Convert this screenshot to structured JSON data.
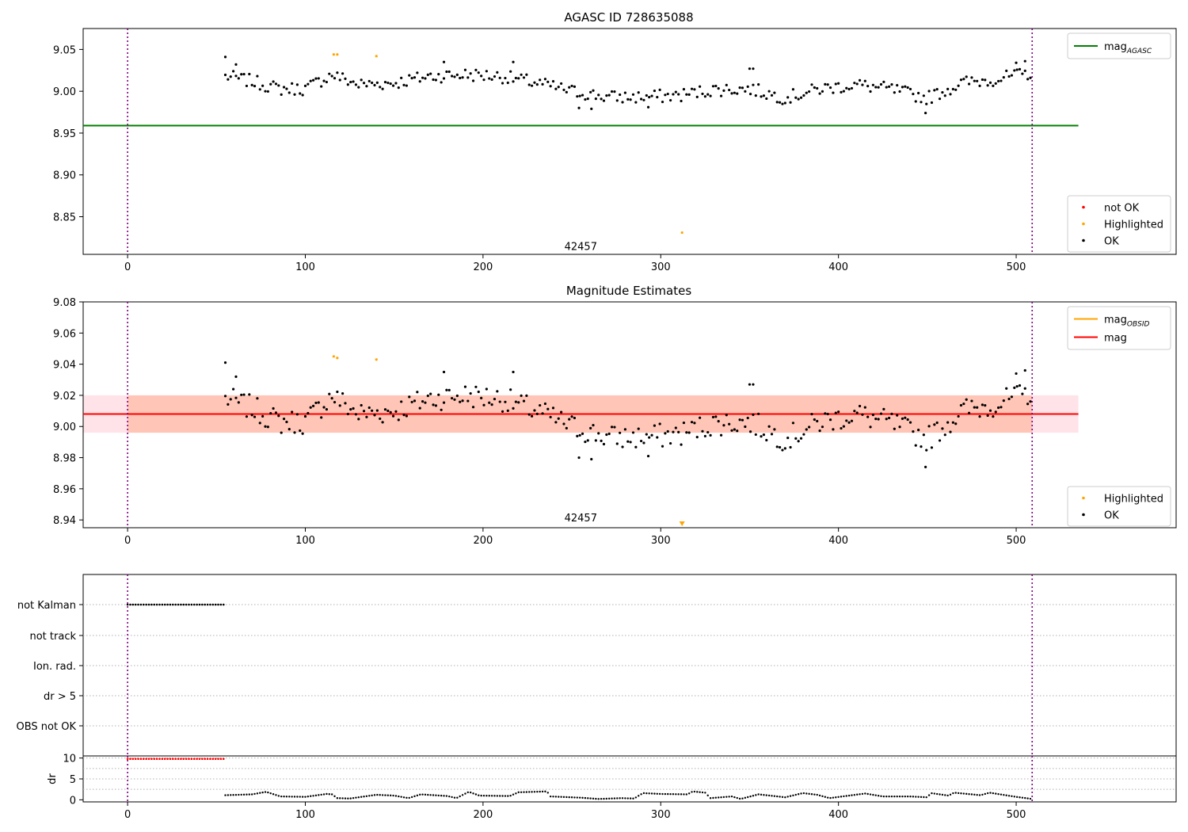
{
  "chart_data": [
    {
      "type": "scatter",
      "title": "AGASC ID 728635088",
      "xlim": [
        -25,
        590
      ],
      "ylim": [
        8.805,
        9.075
      ],
      "xticks": [
        0,
        100,
        200,
        300,
        400,
        500
      ],
      "yticks": [
        8.85,
        8.9,
        8.95,
        9.0,
        9.05
      ],
      "vlines": [
        0,
        509
      ],
      "annotation": {
        "text": "42457",
        "x": 255,
        "y": 8.81
      },
      "hlines": [
        {
          "name": "mag_AGASC",
          "y": 8.959,
          "x0": -25,
          "x1": 535,
          "color": "#008000"
        }
      ],
      "legend_upper": {
        "placement": "upper-right",
        "entries": [
          {
            "label": "mag",
            "sub": "AGASC",
            "kind": "line",
            "color": "#008000"
          }
        ]
      },
      "legend_lower": {
        "placement": "lower-right",
        "entries": [
          {
            "label": "not OK",
            "kind": "marker",
            "color": "#ff0000"
          },
          {
            "label": "Highlighted",
            "kind": "marker",
            "color": "#ffa500"
          },
          {
            "label": "OK",
            "kind": "marker",
            "color": "#000000"
          }
        ]
      },
      "highlighted_points": [
        {
          "x": 116,
          "y": 9.044
        },
        {
          "x": 118,
          "y": 9.044
        },
        {
          "x": 140,
          "y": 9.042
        },
        {
          "x": 312,
          "y": 8.831
        }
      ],
      "ok_series": {
        "x_start": 55,
        "x_end": 509,
        "x_step": 1.5,
        "base_curve": [
          [
            55,
            9.018
          ],
          [
            70,
            9.012
          ],
          [
            85,
            9.003
          ],
          [
            100,
            9.003
          ],
          [
            115,
            9.02
          ],
          [
            130,
            9.008
          ],
          [
            150,
            9.01
          ],
          [
            170,
            9.018
          ],
          [
            190,
            9.02
          ],
          [
            210,
            9.018
          ],
          [
            230,
            9.01
          ],
          [
            250,
            9.0
          ],
          [
            270,
            8.993
          ],
          [
            290,
            8.993
          ],
          [
            310,
            8.995
          ],
          [
            330,
            9.002
          ],
          [
            350,
            9.003
          ],
          [
            370,
            8.992
          ],
          [
            390,
            9.003
          ],
          [
            410,
            9.008
          ],
          [
            430,
            9.002
          ],
          [
            450,
            8.992
          ],
          [
            470,
            9.01
          ],
          [
            490,
            9.015
          ],
          [
            509,
            9.022
          ]
        ],
        "jitter": 0.008,
        "extra_points": [
          {
            "x": 55,
            "y": 9.041
          },
          {
            "x": 61,
            "y": 9.032
          },
          {
            "x": 178,
            "y": 9.035
          },
          {
            "x": 217,
            "y": 9.035
          },
          {
            "x": 350,
            "y": 9.027
          },
          {
            "x": 352,
            "y": 9.027
          },
          {
            "x": 449,
            "y": 8.974
          },
          {
            "x": 254,
            "y": 8.98
          },
          {
            "x": 261,
            "y": 8.979
          },
          {
            "x": 293,
            "y": 8.981
          },
          {
            "x": 505,
            "y": 9.036
          },
          {
            "x": 500,
            "y": 9.034
          }
        ]
      }
    },
    {
      "type": "scatter",
      "title": "Magnitude Estimates",
      "xlim": [
        -25,
        590
      ],
      "ylim": [
        8.935,
        9.08
      ],
      "xticks": [
        0,
        100,
        200,
        300,
        400,
        500
      ],
      "yticks": [
        8.94,
        8.96,
        8.98,
        9.0,
        9.02,
        9.04,
        9.06,
        9.08
      ],
      "vlines": [
        0,
        509
      ],
      "annotation": {
        "text": "42457",
        "x": 255,
        "y": 8.94
      },
      "bands": [
        {
          "y0": 8.996,
          "y1": 9.02,
          "x0": -25,
          "x1": 535,
          "color": "#ffc0cb",
          "opacity": 0.45
        },
        {
          "y0": 8.996,
          "y1": 9.02,
          "x0": 0,
          "x1": 509,
          "color": "#ffa07a",
          "opacity": 0.45
        }
      ],
      "hlines": [
        {
          "name": "mag_OBSID",
          "y": 9.008,
          "x0": 0,
          "x1": 509,
          "color": "#ffa500"
        },
        {
          "name": "mag",
          "y": 9.008,
          "x0": -25,
          "x1": 535,
          "color": "#ff0000"
        }
      ],
      "legend_upper": {
        "placement": "upper-right",
        "entries": [
          {
            "label": "mag",
            "sub": "OBSID",
            "kind": "line",
            "color": "#ffa500"
          },
          {
            "label": "mag",
            "sub": "",
            "kind": "line",
            "color": "#ff0000"
          }
        ]
      },
      "legend_lower": {
        "placement": "lower-right",
        "entries": [
          {
            "label": "Highlighted",
            "kind": "marker",
            "color": "#ffa500"
          },
          {
            "label": "OK",
            "kind": "marker",
            "color": "#000000"
          }
        ]
      },
      "highlighted_points": [
        {
          "x": 116,
          "y": 9.045
        },
        {
          "x": 118,
          "y": 9.044
        },
        {
          "x": 140,
          "y": 9.043
        }
      ],
      "offscale_marker": {
        "x": 312,
        "direction": "down",
        "color": "#ffa500"
      },
      "ok_series": "same-as-panel-1"
    },
    {
      "type": "scatter",
      "title": "",
      "xlim": [
        -25,
        590
      ],
      "vlines": [
        0,
        509
      ],
      "flag_rows": [
        "not Kalman",
        "not track",
        "Ion. rad.",
        "dr > 5",
        "OBS not OK"
      ],
      "not_kalman_range": [
        0,
        55
      ],
      "not_kalman_step": 1.5
    },
    {
      "type": "scatter",
      "title": "",
      "ylabel": "dr",
      "xlim": [
        -25,
        590
      ],
      "ylim": [
        -0.5,
        10.5
      ],
      "xticks": [
        0,
        100,
        200,
        300,
        400,
        500
      ],
      "yticks": [
        0,
        5,
        10
      ],
      "vlines": [
        0,
        509
      ],
      "red_series": {
        "x_start": 0,
        "x_end": 55,
        "step": 1.5,
        "y": 9.8,
        "color": "#ff0000"
      },
      "black_series": {
        "x_start": 55,
        "x_end": 509,
        "step": 1.5,
        "color": "#000000",
        "curve": [
          [
            55,
            1.1
          ],
          [
            70,
            1.3
          ],
          [
            78,
            1.9
          ],
          [
            86,
            0.8
          ],
          [
            100,
            0.7
          ],
          [
            112,
            1.4
          ],
          [
            115,
            1.3
          ],
          [
            118,
            0.4
          ],
          [
            125,
            0.3
          ],
          [
            140,
            1.2
          ],
          [
            150,
            1.0
          ],
          [
            158,
            0.4
          ],
          [
            165,
            1.3
          ],
          [
            180,
            0.9
          ],
          [
            185,
            0.4
          ],
          [
            192,
            1.9
          ],
          [
            198,
            1.0
          ],
          [
            215,
            0.9
          ],
          [
            220,
            1.8
          ],
          [
            236,
            2.0
          ],
          [
            238,
            0.8
          ],
          [
            255,
            0.5
          ],
          [
            265,
            0.2
          ],
          [
            278,
            0.4
          ],
          [
            285,
            0.3
          ],
          [
            290,
            1.6
          ],
          [
            300,
            1.4
          ],
          [
            315,
            1.3
          ],
          [
            318,
            2.0
          ],
          [
            325,
            1.7
          ],
          [
            328,
            0.4
          ],
          [
            340,
            0.8
          ],
          [
            345,
            0.2
          ],
          [
            355,
            1.3
          ],
          [
            370,
            0.6
          ],
          [
            380,
            1.6
          ],
          [
            388,
            1.2
          ],
          [
            395,
            0.4
          ],
          [
            415,
            1.5
          ],
          [
            425,
            0.8
          ],
          [
            440,
            0.8
          ],
          [
            450,
            0.6
          ],
          [
            452,
            1.6
          ],
          [
            462,
            1.0
          ],
          [
            465,
            1.7
          ],
          [
            480,
            1.1
          ],
          [
            485,
            1.7
          ],
          [
            500,
            0.7
          ],
          [
            509,
            0.2
          ]
        ]
      }
    }
  ]
}
